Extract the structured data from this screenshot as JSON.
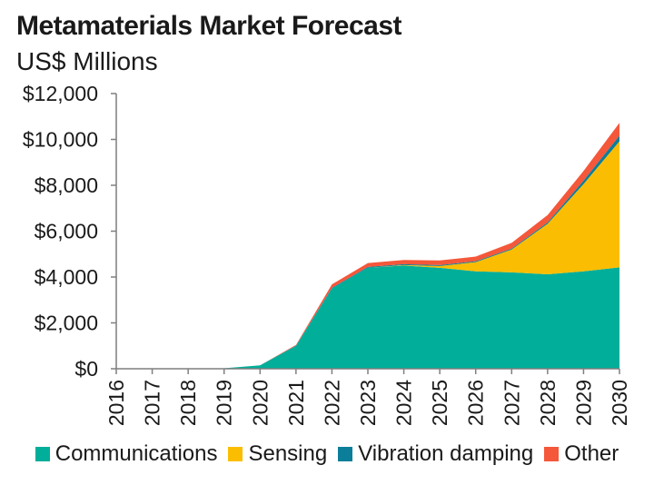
{
  "chart_data": {
    "type": "area",
    "stacked": true,
    "title": "Metamaterials Market Forecast",
    "subtitle": "US$ Millions",
    "xlabel": "",
    "ylabel": "",
    "ylim": [
      0,
      12000
    ],
    "y_ticks": [
      "$0",
      "$2,000",
      "$4,000",
      "$6,000",
      "$8,000",
      "$10,000",
      "$12,000"
    ],
    "y_tick_values": [
      0,
      2000,
      4000,
      6000,
      8000,
      10000,
      12000
    ],
    "categories": [
      "2016",
      "2017",
      "2018",
      "2019",
      "2020",
      "2021",
      "2022",
      "2023",
      "2024",
      "2025",
      "2026",
      "2027",
      "2028",
      "2029",
      "2030"
    ],
    "grid": false,
    "legend_position": "bottom",
    "series": [
      {
        "name": "Communications",
        "color": "#00ae99",
        "values": [
          0,
          0,
          0,
          20,
          150,
          1000,
          3500,
          4400,
          4500,
          4400,
          4250,
          4200,
          4120,
          4250,
          4420
        ]
      },
      {
        "name": "Sensing",
        "color": "#fbbd02",
        "values": [
          0,
          0,
          0,
          0,
          0,
          0,
          0,
          0,
          20,
          80,
          400,
          1000,
          2200,
          3800,
          5500
        ]
      },
      {
        "name": "Vibration damping",
        "color": "#0b7e99",
        "values": [
          0,
          0,
          0,
          0,
          0,
          10,
          30,
          40,
          40,
          40,
          40,
          40,
          60,
          150,
          250
        ]
      },
      {
        "name": "Other",
        "color": "#f4573a",
        "values": [
          0,
          0,
          0,
          0,
          0,
          30,
          150,
          170,
          180,
          200,
          200,
          250,
          320,
          420,
          550
        ]
      }
    ]
  }
}
